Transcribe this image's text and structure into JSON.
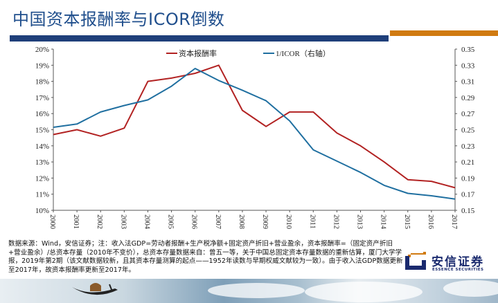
{
  "header": {
    "title": "中国资本报酬率与ICOR倒数"
  },
  "chart_data": {
    "type": "line",
    "title": "中国资本报酬率与ICOR倒数",
    "x": [
      "2000",
      "2001",
      "2002",
      "2003",
      "2004",
      "2005",
      "2006",
      "2007",
      "2008",
      "2009",
      "2010",
      "2011",
      "2012",
      "2013",
      "2014",
      "2015",
      "2016",
      "2017"
    ],
    "series": [
      {
        "name": "资本报酬率",
        "axis": "left",
        "color": "#b22222",
        "values": [
          14.7,
          15.0,
          14.6,
          15.1,
          18.0,
          18.2,
          18.5,
          19.0,
          16.2,
          15.2,
          16.1,
          16.1,
          14.8,
          14.0,
          13.0,
          11.9,
          11.8,
          11.4
        ]
      },
      {
        "name": "1/ICOR（右轴）",
        "axis": "right",
        "color": "#1f6fa0",
        "values": [
          0.253,
          0.257,
          0.272,
          0.28,
          0.287,
          0.304,
          0.326,
          0.311,
          0.299,
          0.286,
          0.261,
          0.225,
          0.211,
          0.197,
          0.181,
          0.171,
          0.168,
          0.164
        ]
      }
    ],
    "left_axis": {
      "ylim": [
        10,
        20
      ],
      "ticks": [
        "10%",
        "11%",
        "12%",
        "13%",
        "14%",
        "15%",
        "16%",
        "17%",
        "18%",
        "19%",
        "20%"
      ]
    },
    "right_axis": {
      "ylim": [
        0.15,
        0.35
      ],
      "ticks": [
        "0.15",
        "0.17",
        "0.19",
        "0.21",
        "0.23",
        "0.25",
        "0.27",
        "0.29",
        "0.31",
        "0.33",
        "0.35"
      ]
    },
    "xlabel": "",
    "ylabel": "",
    "grid": false,
    "legend_position": "top"
  },
  "footer": {
    "note": "数据来源：Wind，安信证券；注：收入法GDP=劳动者报酬+生产税净额+固定资产折旧+营业盈余，资本报酬率=（固定资产折旧+营业盈余）/总资本存量（2010年不变价），总资本存量数据来自：曾五一等，关于中国总固定资本存量数据的重新估算，厦门大学学报，2019年第2期（该文献数据较新，且其资本存量测算的起点——1952年读数与早期权威文献较为一致）。由于收入法GDP数据更新至2017年，故资本报酬率更新至2017年。"
  },
  "logo": {
    "name_cn": "安信证券",
    "name_en": "ESSENCE SECURITIES"
  },
  "colors": {
    "title": "#1f4e8c",
    "bar_blue": "#1f3f7a",
    "bar_orange": "#d07a10",
    "red_series": "#b22222",
    "blue_series": "#1f6fa0"
  }
}
